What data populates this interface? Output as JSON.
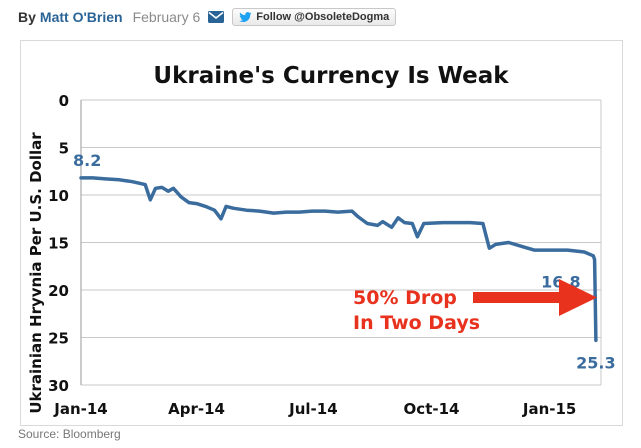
{
  "byline": {
    "prefix": "By",
    "author": "Matt O'Brien",
    "date": "February 6",
    "follow_label": "Follow @ObsoleteDogma",
    "email_icon": "envelope-icon",
    "twitter_icon": "twitter-bird-icon"
  },
  "source": "Source: Bloomberg",
  "colors": {
    "line": "#3b6c9e",
    "arrow": "#e8321e",
    "author": "#2a6496"
  },
  "chart_data": {
    "type": "line",
    "title": "Ukraine's Currency Is Weak",
    "ylabel": "Ukrainian Hryvnia Per U.S. Dollar",
    "xlabel": "",
    "y_inverted": true,
    "ylim": [
      0,
      30
    ],
    "yticks": [
      0,
      5,
      10,
      15,
      20,
      25,
      30
    ],
    "xlim": [
      "2014-01-01",
      "2015-02-10"
    ],
    "xticks": [
      {
        "label": "Jan-14",
        "date": "2014-01-01"
      },
      {
        "label": "Apr-14",
        "date": "2014-04-01"
      },
      {
        "label": "Jul-14",
        "date": "2014-07-01"
      },
      {
        "label": "Oct-14",
        "date": "2014-10-01"
      },
      {
        "label": "Jan-15",
        "date": "2015-01-01"
      }
    ],
    "grid": true,
    "series": [
      {
        "points": [
          [
            "2014-01-01",
            8.2
          ],
          [
            "2014-01-10",
            8.2
          ],
          [
            "2014-01-20",
            8.3
          ],
          [
            "2014-01-31",
            8.4
          ],
          [
            "2014-02-10",
            8.6
          ],
          [
            "2014-02-20",
            8.9
          ],
          [
            "2014-02-24",
            10.5
          ],
          [
            "2014-02-28",
            9.3
          ],
          [
            "2014-03-05",
            9.2
          ],
          [
            "2014-03-10",
            9.6
          ],
          [
            "2014-03-14",
            9.3
          ],
          [
            "2014-03-20",
            10.2
          ],
          [
            "2014-03-26",
            10.8
          ],
          [
            "2014-04-01",
            10.9
          ],
          [
            "2014-04-08",
            11.2
          ],
          [
            "2014-04-15",
            11.6
          ],
          [
            "2014-04-20",
            12.5
          ],
          [
            "2014-04-24",
            11.2
          ],
          [
            "2014-04-30",
            11.4
          ],
          [
            "2014-05-10",
            11.6
          ],
          [
            "2014-05-20",
            11.7
          ],
          [
            "2014-05-31",
            11.9
          ],
          [
            "2014-06-10",
            11.8
          ],
          [
            "2014-06-20",
            11.8
          ],
          [
            "2014-06-30",
            11.7
          ],
          [
            "2014-07-10",
            11.7
          ],
          [
            "2014-07-20",
            11.8
          ],
          [
            "2014-07-31",
            11.7
          ],
          [
            "2014-08-05",
            12.3
          ],
          [
            "2014-08-12",
            13.0
          ],
          [
            "2014-08-20",
            13.2
          ],
          [
            "2014-08-24",
            12.8
          ],
          [
            "2014-08-31",
            13.4
          ],
          [
            "2014-09-05",
            12.4
          ],
          [
            "2014-09-10",
            12.9
          ],
          [
            "2014-09-16",
            13.0
          ],
          [
            "2014-09-20",
            14.4
          ],
          [
            "2014-09-25",
            13.0
          ],
          [
            "2014-10-10",
            12.9
          ],
          [
            "2014-10-31",
            12.9
          ],
          [
            "2014-11-10",
            13.0
          ],
          [
            "2014-11-15",
            15.6
          ],
          [
            "2014-11-20",
            15.2
          ],
          [
            "2014-11-30",
            15.0
          ],
          [
            "2014-12-10",
            15.4
          ],
          [
            "2014-12-20",
            15.8
          ],
          [
            "2015-01-01",
            15.8
          ],
          [
            "2015-01-15",
            15.8
          ],
          [
            "2015-01-28",
            16.0
          ],
          [
            "2015-02-04",
            16.4
          ],
          [
            "2015-02-05",
            16.8
          ],
          [
            "2015-02-06",
            25.3
          ]
        ]
      }
    ],
    "annotations": [
      {
        "text": "8.2",
        "x": "2014-01-01",
        "y": 8.2
      },
      {
        "text": "16.8",
        "x": "2015-02-05",
        "y": 16.8
      },
      {
        "text": "25.3",
        "x": "2015-02-06",
        "y": 25.3
      }
    ],
    "callout": {
      "lines": [
        "50% Drop",
        "In Two Days"
      ]
    }
  }
}
